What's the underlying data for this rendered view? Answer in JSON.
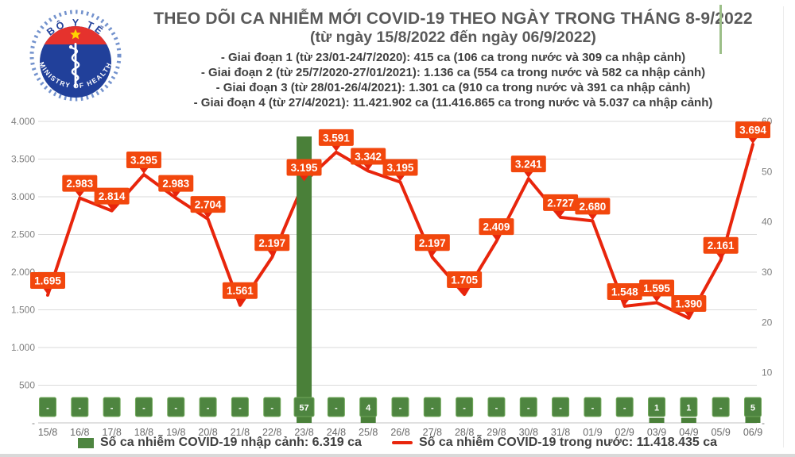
{
  "header": {
    "logo": {
      "top_text": "BỘ Y TẾ",
      "bottom_text": "MINISTRY OF HEALTH"
    },
    "title_line1": "THEO DÕI CA NHIỄM MỚI COVID-19 THEO NGÀY TRONG THÁNG 8-9/2022",
    "title_line2": "(từ ngày 15/8/2022 đến ngày 06/9/2022)",
    "period_notes": [
      "- Giai đoạn 1 (từ 23/01-24/7/2020): 415 ca (106 ca trong nước và 309 ca nhập cảnh)",
      "- Giai đoạn 2 (từ 25/7/2020-27/01/2021): 1.136 ca (554 ca trong nước và 582 ca nhập cảnh)",
      "- Giai đoạn 3 (từ 28/01-26/4/2021): 1.301 ca (910 ca trong nước và 391 ca nhập cảnh)",
      "- Giai đoạn 4 (từ 27/4/2021): 11.421.902 ca (11.416.865 ca trong nước và 5.037 ca nhập cảnh)"
    ]
  },
  "chart_data": {
    "type": "combo line+bar, dual axis",
    "categories": [
      "15/8",
      "16/8",
      "17/8",
      "18/8",
      "19/8",
      "20/8",
      "21/8",
      "22/8",
      "23/8",
      "24/8",
      "25/8",
      "26/8",
      "27/8",
      "28/8",
      "29/8",
      "30/8",
      "31/8",
      "01/9",
      "02/9",
      "03/9",
      "04/9",
      "05/9",
      "06/9"
    ],
    "series": [
      {
        "name": "Số ca nhiễm COVID-19 trong nước",
        "type": "line",
        "axis": "left",
        "color": "#e8250c",
        "label_box_color": "#f2470d",
        "values": [
          1695,
          2983,
          2814,
          3295,
          2983,
          2704,
          1561,
          2197,
          3195,
          3591,
          3342,
          3195,
          2197,
          1705,
          2409,
          3241,
          2727,
          2680,
          1548,
          1595,
          1390,
          2161,
          3694
        ],
        "labels": [
          "1.695",
          "2.983",
          "2.814",
          "3.295",
          "2.983",
          "2.704",
          "1.561",
          "2.197",
          "3.195",
          "3.591",
          "3.342",
          "3.195",
          "2.197",
          "1.705",
          "2.409",
          "3.241",
          "2.727",
          "2.680",
          "1.548",
          "1.595",
          "1.390",
          "2.161",
          "3.694"
        ]
      },
      {
        "name": "Số ca nhiễm COVID-19 nhập cảnh",
        "type": "bar",
        "axis": "right",
        "color": "#4a8039",
        "label_box_color": "#4e8540",
        "values": [
          0,
          0,
          0,
          0,
          0,
          0,
          0,
          0,
          57,
          0,
          4,
          0,
          0,
          0,
          0,
          0,
          0,
          0,
          0,
          1,
          1,
          0,
          5
        ],
        "labels": [
          "-",
          "-",
          "-",
          "-",
          "-",
          "-",
          "-",
          "-",
          "57",
          "-",
          "4",
          "-",
          "-",
          "-",
          "-",
          "-",
          "-",
          "-",
          "-",
          "1",
          "1",
          "-",
          "5"
        ]
      }
    ],
    "left_axis": {
      "ticks": [
        "4.000",
        "3.500",
        "3.000",
        "2.500",
        "2.000",
        "1.500",
        "1.000",
        "500",
        "-"
      ],
      "max": 4000,
      "min": 0
    },
    "right_axis": {
      "ticks": [
        "60",
        "50",
        "40",
        "30",
        "20",
        "10",
        "-"
      ],
      "max": 60,
      "min": 0
    },
    "grid": "horizontal only",
    "legend_position": "bottom",
    "legend": [
      {
        "swatch": "bar",
        "color": "#4e8540",
        "label": "Số ca nhiễm COVID-19 nhập cảnh: 6.319 ca"
      },
      {
        "swatch": "line",
        "color": "#e8250c",
        "label": "Số ca nhiễm COVID-19 trong nước: 11.418.435 ca"
      }
    ]
  }
}
